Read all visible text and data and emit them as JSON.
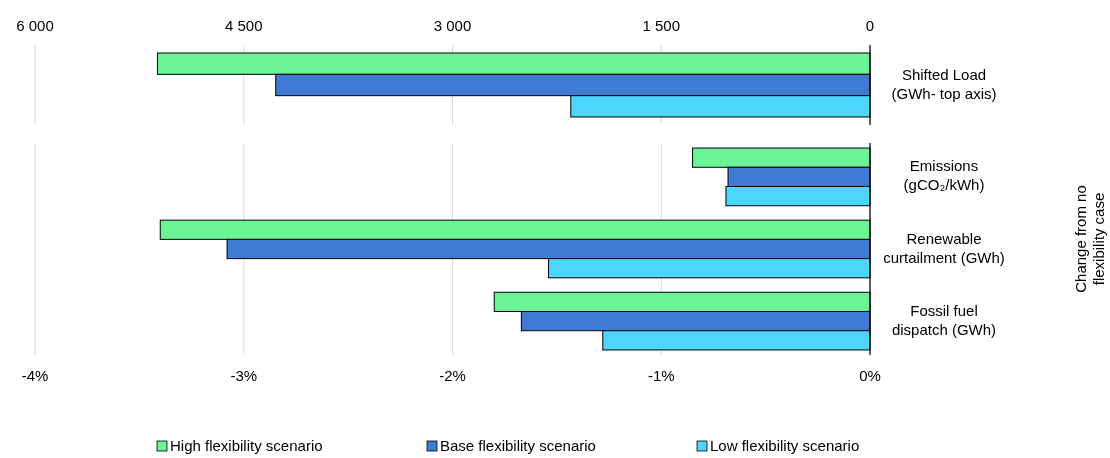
{
  "chart_data": [
    {
      "type": "bar",
      "orientation": "horizontal",
      "categories": [
        "Shifted Load (GWh- top axis)"
      ],
      "xlim": [
        6000,
        0
      ],
      "xticks": [
        {
          "value": 6000,
          "label": "6 000"
        },
        {
          "value": 4500,
          "label": "4 500"
        },
        {
          "value": 3000,
          "label": "3 000"
        },
        {
          "value": 1500,
          "label": "1 500"
        },
        0
      ],
      "grid": "x",
      "legend": false,
      "series": [
        {
          "color": "#6af495",
          "values": [
            5120
          ]
        },
        {
          "color": "#3f7bd4",
          "values": [
            4270
          ]
        },
        {
          "color": "#4dd5fb",
          "values": [
            2150
          ]
        }
      ]
    },
    {
      "type": "bar",
      "orientation": "horizontal",
      "categories": [
        "Emissions (gCO₂/kWh)",
        "Renewable curtailment (GWh)",
        "Fossil fuel dispatch (GWh)"
      ],
      "xlim": [
        -4,
        0
      ],
      "xticks": [
        {
          "value": -4,
          "label": "-4%"
        },
        {
          "value": -3,
          "label": "-3%"
        },
        {
          "value": -2,
          "label": "-2%"
        },
        {
          "value": -1,
          "label": "-1%"
        },
        {
          "value": 0,
          "label": "0%"
        }
      ],
      "grid": "x",
      "legend": "bottom",
      "ylabel": "Change from no flexibility case",
      "series": [
        {
          "name": "High flexibility scenario",
          "color": "#6af495",
          "values": [
            -0.85,
            -3.4,
            -1.8
          ]
        },
        {
          "name": "Base flexibility scenario",
          "color": "#3f7bd4",
          "values": [
            -0.68,
            -3.08,
            -1.67
          ]
        },
        {
          "name": "Low flexibility scenario",
          "color": "#4dd5fb",
          "values": [
            -0.69,
            -1.54,
            -1.28
          ]
        }
      ]
    }
  ]
}
